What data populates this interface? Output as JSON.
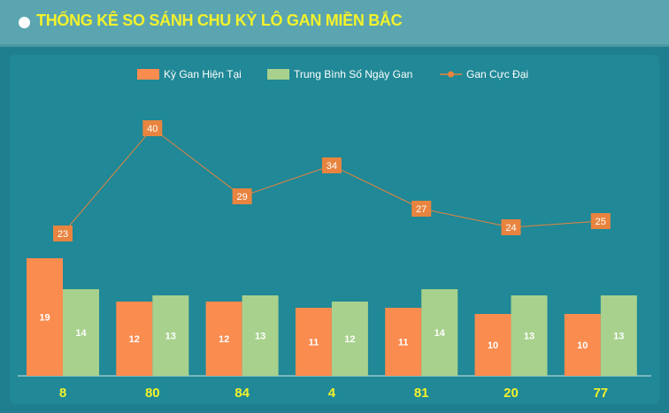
{
  "header": {
    "title": "THỐNG KÊ SO SÁNH CHU KỲ LÔ GAN MIỀN BẮC"
  },
  "colors": {
    "current": "#fa8c4f",
    "average": "#a8d18d",
    "max": "#e8843f",
    "category": "#f3f22b"
  },
  "chart_data": {
    "type": "bar",
    "categories": [
      "8",
      "80",
      "84",
      "4",
      "81",
      "20",
      "77"
    ],
    "series": [
      {
        "name": "Kỳ Gan Hiện Tại",
        "type": "bar",
        "values": [
          19,
          12,
          12,
          11,
          11,
          10,
          10
        ]
      },
      {
        "name": "Trung Bình Số Ngày Gan",
        "type": "bar",
        "values": [
          14,
          13,
          13,
          12,
          14,
          13,
          13
        ]
      },
      {
        "name": "Gan Cực Đại",
        "type": "line",
        "values": [
          23,
          40,
          29,
          34,
          27,
          24,
          25
        ]
      }
    ],
    "legend": "top-center",
    "grid": false
  }
}
